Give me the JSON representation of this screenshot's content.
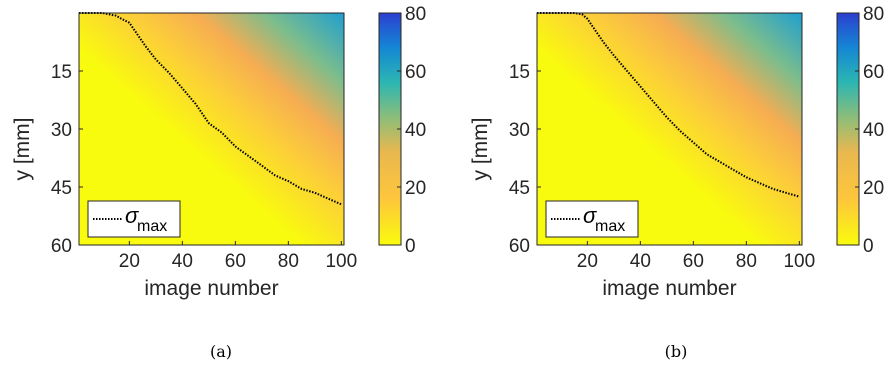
{
  "chart_data": [
    {
      "type": "heatmap",
      "caption": "(a)",
      "xlabel": "image number",
      "ylabel": "y [mm]",
      "xlim": [
        1,
        101
      ],
      "ylim": [
        0,
        60
      ],
      "y_direction": "reversed",
      "xticks": [
        20,
        40,
        60,
        80,
        100
      ],
      "yticks": [
        15,
        30,
        45,
        60
      ],
      "colorbar": {
        "ticks": [
          0,
          20,
          40,
          60,
          80
        ],
        "range": [
          0,
          80
        ],
        "colormap": [
          "#f9fb0e",
          "#feb830",
          "#2cb6b2",
          "#1487d4",
          "#2c3fd0"
        ]
      },
      "legend": {
        "symbol": "σ",
        "subscript": "max",
        "placement": "bottom-left",
        "line_style": "dotted"
      },
      "series": [
        {
          "name": "σmax",
          "x": [
            1,
            10,
            12,
            15,
            17,
            20,
            23,
            26,
            30,
            35,
            40,
            45,
            50,
            55,
            60,
            65,
            70,
            75,
            80,
            85,
            90,
            95,
            100
          ],
          "y": [
            0,
            0,
            0.3,
            0.7,
            1.5,
            2.5,
            5.5,
            8.5,
            12,
            15.5,
            19.5,
            23.5,
            28.5,
            31,
            34.5,
            37,
            39.5,
            42,
            43.5,
            45.5,
            46.5,
            48,
            49.5
          ]
        }
      ]
    },
    {
      "type": "heatmap",
      "caption": "(b)",
      "xlabel": "image number",
      "ylabel": "y [mm]",
      "xlim": [
        1,
        101
      ],
      "ylim": [
        0,
        60
      ],
      "y_direction": "reversed",
      "xticks": [
        20,
        40,
        60,
        80,
        100
      ],
      "yticks": [
        15,
        30,
        45,
        60
      ],
      "colorbar": {
        "ticks": [
          0,
          20,
          40,
          60,
          80
        ],
        "range": [
          0,
          80
        ],
        "colormap": [
          "#f9fb0e",
          "#feb830",
          "#2cb6b2",
          "#1487d4",
          "#2c3fd0"
        ]
      },
      "legend": {
        "symbol": "σ",
        "subscript": "max",
        "placement": "bottom-left",
        "line_style": "dotted"
      },
      "series": [
        {
          "name": "σmax",
          "x": [
            1,
            10,
            15,
            18,
            20,
            23,
            26,
            30,
            35,
            40,
            45,
            50,
            55,
            60,
            65,
            70,
            75,
            80,
            85,
            90,
            95,
            100
          ],
          "y": [
            0,
            0,
            0,
            0.3,
            1.5,
            4.5,
            7.5,
            11,
            15,
            19,
            23,
            27,
            30.5,
            33.5,
            36.5,
            38.5,
            40.5,
            42.5,
            44,
            45.5,
            46.5,
            47.5
          ]
        }
      ]
    }
  ]
}
